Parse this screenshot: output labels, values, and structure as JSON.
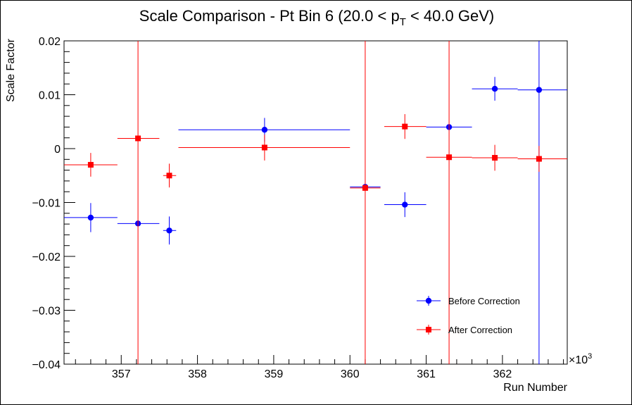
{
  "chart_data": {
    "type": "scatter",
    "title_main": "Scale Comparison - Pt Bin 6 (20.0 < p",
    "title_sub": "T",
    "title_end": " < 40.0 GeV)",
    "xlabel": "Run Number",
    "ylabel": "Scale Factor",
    "x_exponent_label": "×10",
    "x_exponent_power": "3",
    "xlim": [
      356.25,
      362.85
    ],
    "ylim": [
      -0.04,
      0.02
    ],
    "x_ticks": [
      357,
      358,
      359,
      360,
      361,
      362
    ],
    "x_tick_labels": [
      "357",
      "358",
      "359",
      "360",
      "361",
      "362"
    ],
    "y_ticks": [
      0.02,
      0.01,
      0,
      -0.01,
      -0.02,
      -0.03,
      -0.04
    ],
    "y_tick_labels": [
      "0.02",
      "0.01",
      "0",
      "−0.01",
      "−0.02",
      "−0.03",
      "−0.04"
    ],
    "legend_position": "bottom-right",
    "series": [
      {
        "name": "Before Correction",
        "color": "#0000ff",
        "marker": "circle",
        "points": [
          {
            "x": 356.6,
            "xlo": 356.25,
            "xhi": 356.95,
            "y": -0.0128,
            "ylo": -0.0155,
            "yhi": -0.0101
          },
          {
            "x": 357.22,
            "xlo": 356.95,
            "xhi": 357.5,
            "y": -0.0139,
            "ylo": -0.0142,
            "yhi": -0.0136
          },
          {
            "x": 357.63,
            "xlo": 357.55,
            "xhi": 357.72,
            "y": -0.0152,
            "ylo": -0.0178,
            "yhi": -0.0126
          },
          {
            "x": 358.88,
            "xlo": 357.75,
            "xhi": 360.0,
            "y": 0.0035,
            "ylo": 0.0013,
            "yhi": 0.0057
          },
          {
            "x": 360.2,
            "xlo": 360.0,
            "xhi": 360.4,
            "y": -0.0071,
            "ylo": -0.0074,
            "yhi": -0.0068
          },
          {
            "x": 360.72,
            "xlo": 360.45,
            "xhi": 361.0,
            "y": -0.0104,
            "ylo": -0.0127,
            "yhi": -0.0081
          },
          {
            "x": 361.3,
            "xlo": 361.0,
            "xhi": 361.6,
            "y": 0.004,
            "ylo": 0.0037,
            "yhi": 0.0043
          },
          {
            "x": 361.9,
            "xlo": 361.6,
            "xhi": 362.2,
            "y": 0.0111,
            "ylo": 0.0089,
            "yhi": 0.0133
          },
          {
            "x": 362.48,
            "xlo": 362.2,
            "xhi": 362.85,
            "y": 0.0109,
            "ylo": -0.04,
            "yhi": 0.02
          }
        ]
      },
      {
        "name": "After Correction",
        "color": "#ff0000",
        "marker": "square",
        "points": [
          {
            "x": 356.6,
            "xlo": 356.25,
            "xhi": 356.95,
            "y": -0.003,
            "ylo": -0.0052,
            "yhi": -0.0008
          },
          {
            "x": 357.22,
            "xlo": 356.95,
            "xhi": 357.5,
            "y": 0.0019,
            "ylo": -0.04,
            "yhi": 0.02
          },
          {
            "x": 357.63,
            "xlo": 357.55,
            "xhi": 357.72,
            "y": -0.005,
            "ylo": -0.0072,
            "yhi": -0.0028
          },
          {
            "x": 358.88,
            "xlo": 357.75,
            "xhi": 360.0,
            "y": 0.0002,
            "ylo": -0.0022,
            "yhi": 0.0026
          },
          {
            "x": 360.2,
            "xlo": 360.0,
            "xhi": 360.4,
            "y": -0.0073,
            "ylo": -0.04,
            "yhi": 0.02
          },
          {
            "x": 360.72,
            "xlo": 360.45,
            "xhi": 361.0,
            "y": 0.0041,
            "ylo": 0.0018,
            "yhi": 0.0064
          },
          {
            "x": 361.3,
            "xlo": 361.0,
            "xhi": 361.6,
            "y": -0.0016,
            "ylo": -0.04,
            "yhi": 0.02
          },
          {
            "x": 361.9,
            "xlo": 361.6,
            "xhi": 362.2,
            "y": -0.0017,
            "ylo": -0.0041,
            "yhi": 0.0007
          },
          {
            "x": 362.48,
            "xlo": 362.2,
            "xhi": 362.85,
            "y": -0.0019,
            "ylo": -0.0043,
            "yhi": 0.0005
          }
        ]
      }
    ]
  }
}
